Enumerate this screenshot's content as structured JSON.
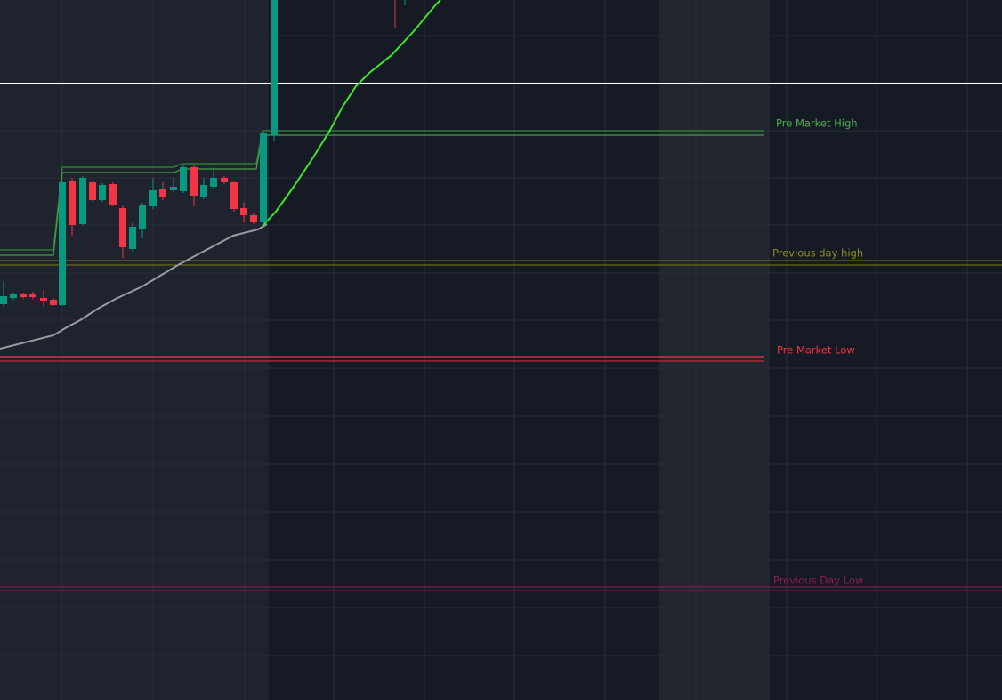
{
  "labels": {
    "pre_market_high": "Pre Market High",
    "previous_day_high": "Previous day high",
    "pre_market_low": "Pre Market Low",
    "previous_day_low": "Previous Day Low"
  }
}
